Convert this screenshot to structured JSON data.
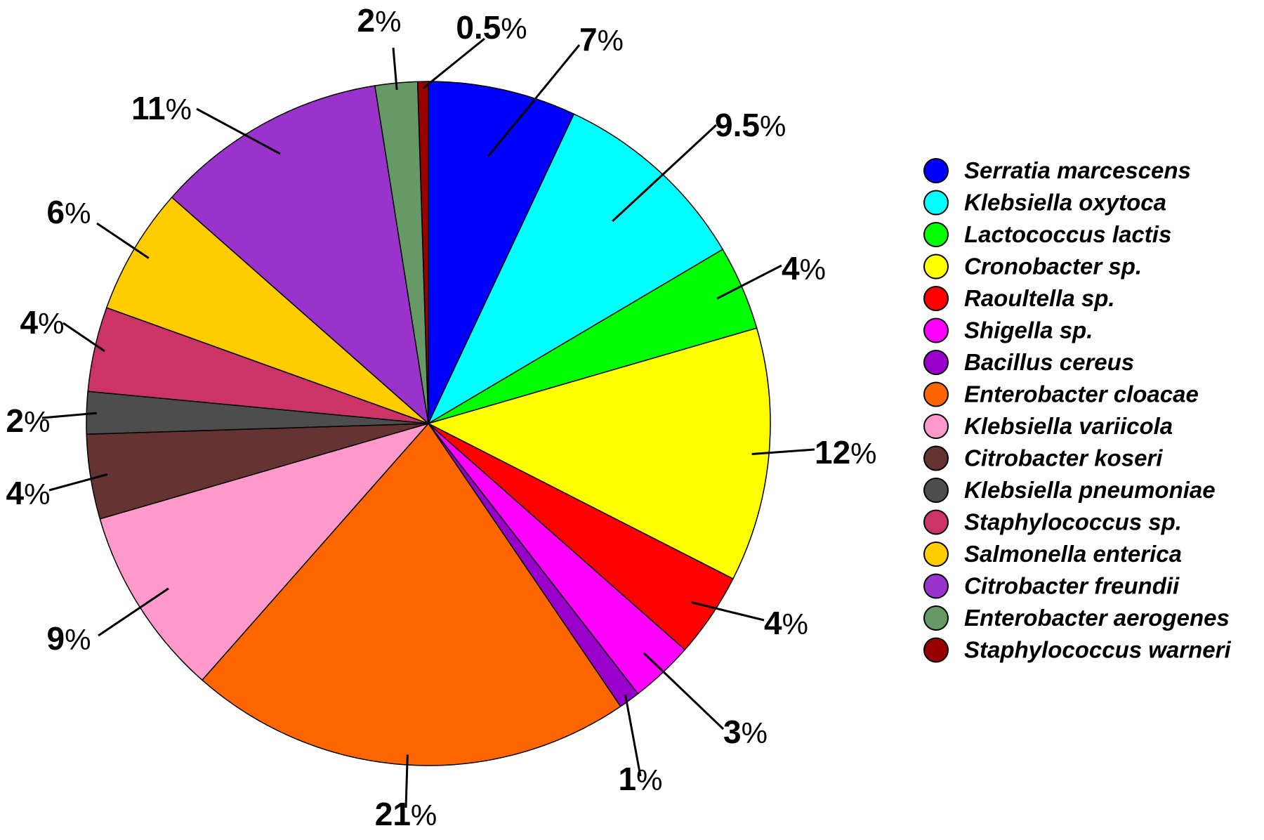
{
  "chart_data": {
    "type": "pie",
    "title": "",
    "legend_position": "right",
    "start": "top",
    "direction": "clockwise",
    "slices": [
      {
        "name": "Serratia marcescens",
        "value": 7,
        "label": "7",
        "color": "#0000FF"
      },
      {
        "name": "Klebsiella oxytoca",
        "value": 9.5,
        "label": "9.5",
        "color": "#00FFFF"
      },
      {
        "name": "Lactococcus lactis",
        "value": 4,
        "label": "4",
        "color": "#00FF00"
      },
      {
        "name": "Cronobacter sp.",
        "value": 12,
        "label": "12",
        "color": "#FFFF00"
      },
      {
        "name": "Raoultella sp.",
        "value": 4,
        "label": "4",
        "color": "#FF0000"
      },
      {
        "name": "Shigella sp.",
        "value": 3,
        "label": "3",
        "color": "#FF00FF"
      },
      {
        "name": "Bacillus cereus",
        "value": 1,
        "label": "1",
        "color": "#9900CC"
      },
      {
        "name": "Enterobacter cloacae",
        "value": 21,
        "label": "21",
        "color": "#FF6600"
      },
      {
        "name": "Klebsiella variicola",
        "value": 9,
        "label": "9",
        "color": "#FF99CC"
      },
      {
        "name": "Citrobacter koseri",
        "value": 4,
        "label": "4",
        "color": "#663333"
      },
      {
        "name": "Klebsiella pneumoniae",
        "value": 2,
        "label": "2",
        "color": "#4D4D4D"
      },
      {
        "name": "Staphylococcus sp.",
        "value": 4,
        "label": "4",
        "color": "#CC3366"
      },
      {
        "name": "Salmonella enterica",
        "value": 6,
        "label": "6",
        "color": "#FFCC00"
      },
      {
        "name": "Citrobacter freundii",
        "value": 11,
        "label": "11",
        "color": "#9933CC"
      },
      {
        "name": "Enterobacter aerogenes",
        "value": 2,
        "label": "2",
        "color": "#669966"
      },
      {
        "name": "Staphylococcus warneri",
        "value": 0.5,
        "label": "0.5",
        "color": "#990000"
      }
    ],
    "percent_sign": "%"
  }
}
